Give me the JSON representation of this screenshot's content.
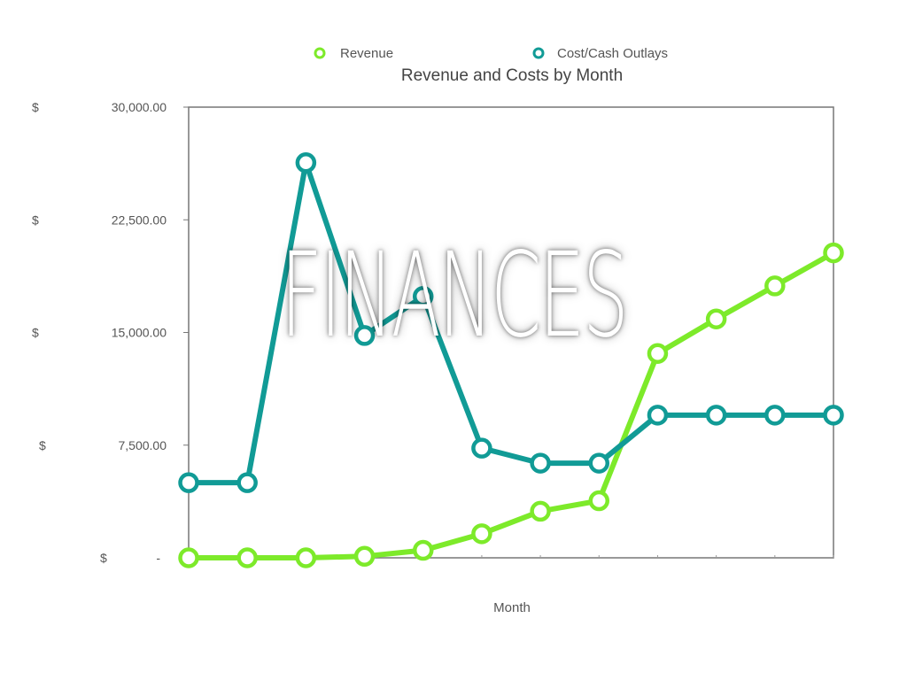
{
  "colors": {
    "revenue": "#7dea2a",
    "costs": "#119b96",
    "axis": "#777777",
    "text": "#555555"
  },
  "overlay_title": "FINANCES",
  "chart_data": {
    "type": "line",
    "title": "Revenue and Costs by Month",
    "xlabel": "Month",
    "ylabel": "",
    "ylim": [
      0,
      30000
    ],
    "yticks": [
      {
        "value": 30000,
        "prefix": "$",
        "label": "30,000.00"
      },
      {
        "value": 22500,
        "prefix": "$",
        "label": "22,500.00"
      },
      {
        "value": 15000,
        "prefix": "$",
        "label": "15,000.00"
      },
      {
        "value": 7500,
        "prefix": "$",
        "label": "7,500.00"
      },
      {
        "value": 0,
        "prefix": "$",
        "label": "-"
      }
    ],
    "legend_position": "top-center",
    "series": [
      {
        "name": "Revenue",
        "color": "#7dea2a",
        "values": [
          0,
          0,
          0,
          100,
          500,
          1600,
          3100,
          3800,
          13600,
          15900,
          18100,
          20300
        ]
      },
      {
        "name": "Cost/Cash Outlays",
        "color": "#119b96",
        "values": [
          5000,
          5000,
          26300,
          14800,
          17400,
          7300,
          6300,
          6300,
          9500,
          9500,
          9500,
          9500
        ]
      }
    ]
  }
}
